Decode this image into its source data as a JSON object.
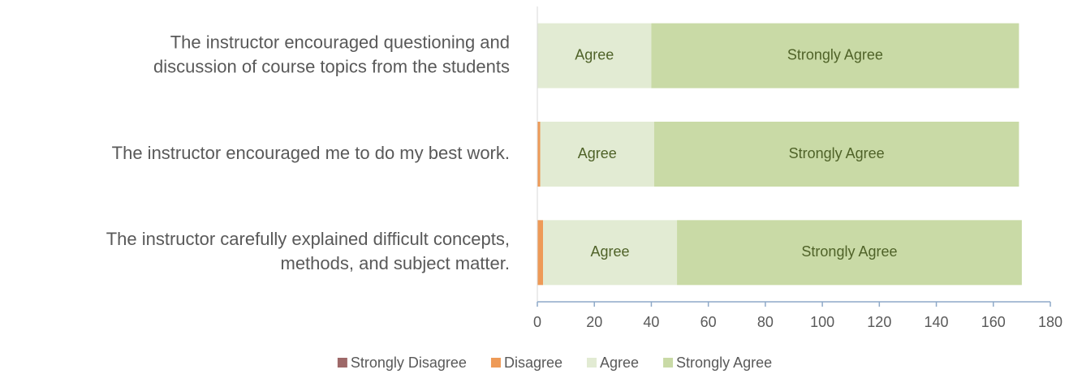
{
  "chart_data": {
    "type": "stacked-barh",
    "categories": [
      [
        "The instructor encouraged questioning and",
        "discussion of course topics from the students"
      ],
      [
        "The instructor encouraged me to do my best work."
      ],
      [
        "The instructor carefully explained difficult concepts,",
        "methods, and subject matter."
      ]
    ],
    "series": [
      {
        "name": "Strongly Disagree",
        "color": "#9e6868",
        "values": [
          0,
          0,
          0
        ]
      },
      {
        "name": "Disagree",
        "color": "#ee9a57",
        "values": [
          0,
          1,
          2
        ]
      },
      {
        "name": "Agree",
        "color": "#e2ebd3",
        "values": [
          40,
          40,
          47
        ]
      },
      {
        "name": "Strongly Agree",
        "color": "#c9daa6",
        "values": [
          129,
          128,
          121
        ]
      }
    ],
    "xlim": [
      0,
      180
    ],
    "xticks": [
      0,
      20,
      40,
      60,
      80,
      100,
      120,
      140,
      160,
      180
    ],
    "legend": "bottom"
  }
}
